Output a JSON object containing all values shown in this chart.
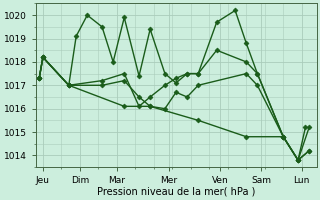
{
  "xlabel": "Pression niveau de la mer( hPa )",
  "bg_color": "#cceedd",
  "grid_color": "#aaccbb",
  "line_color": "#1a5c1a",
  "marker": "D",
  "markersize": 2.5,
  "linewidth": 1.0,
  "ylim": [
    1013.5,
    1020.5
  ],
  "yticks": [
    1014,
    1015,
    1016,
    1017,
    1018,
    1019,
    1020
  ],
  "tick_fontsize": 6.5,
  "xlabel_fontsize": 7.0,
  "series": [
    {
      "x": [
        0.0,
        0.5,
        4.0,
        5.0,
        6.5,
        8.5,
        10.0,
        11.5,
        13.5,
        15.0,
        17.0,
        18.5,
        20.0,
        21.5,
        24.0,
        26.5,
        28.0,
        29.5,
        33.0,
        35.0,
        36.0
      ],
      "y": [
        1017.3,
        1018.2,
        1017.0,
        1019.1,
        1020.0,
        1019.5,
        1018.0,
        1019.9,
        1017.4,
        1019.4,
        1017.5,
        1017.1,
        1017.5,
        1017.5,
        1019.7,
        1020.2,
        1018.8,
        1017.5,
        1014.8,
        1013.8,
        1015.2
      ]
    },
    {
      "x": [
        0.0,
        0.5,
        4.0,
        8.5,
        11.5,
        13.5,
        15.0,
        17.0,
        18.5,
        20.0,
        21.5,
        24.0,
        28.0,
        29.5,
        33.0,
        35.0,
        36.5
      ],
      "y": [
        1017.3,
        1018.2,
        1017.0,
        1017.2,
        1017.5,
        1016.1,
        1016.5,
        1017.0,
        1017.3,
        1017.5,
        1017.5,
        1018.5,
        1018.0,
        1017.5,
        1014.8,
        1013.8,
        1015.2
      ]
    },
    {
      "x": [
        0.0,
        0.5,
        4.0,
        8.5,
        11.5,
        13.5,
        15.0,
        17.0,
        18.5,
        20.0,
        21.5,
        28.0,
        29.5,
        33.0,
        35.0,
        36.5
      ],
      "y": [
        1017.3,
        1018.2,
        1017.0,
        1017.0,
        1017.2,
        1016.5,
        1016.1,
        1016.0,
        1016.7,
        1016.5,
        1017.0,
        1017.5,
        1017.0,
        1014.8,
        1013.8,
        1014.2
      ]
    },
    {
      "x": [
        0.0,
        0.5,
        4.0,
        11.5,
        15.0,
        21.5,
        28.0,
        33.0,
        35.0,
        36.5
      ],
      "y": [
        1017.3,
        1018.2,
        1017.0,
        1016.1,
        1016.1,
        1015.5,
        1014.8,
        1014.8,
        1013.8,
        1014.2
      ]
    }
  ],
  "xtick_positions": [
    0.5,
    5.5,
    10.5,
    17.5,
    24.5,
    30.0,
    35.5
  ],
  "xtick_labels": [
    "Jeu",
    "Dim",
    "Mar",
    "Mer",
    "Ven",
    "Sam",
    "Lun"
  ],
  "xlim": [
    -0.5,
    37.5
  ]
}
